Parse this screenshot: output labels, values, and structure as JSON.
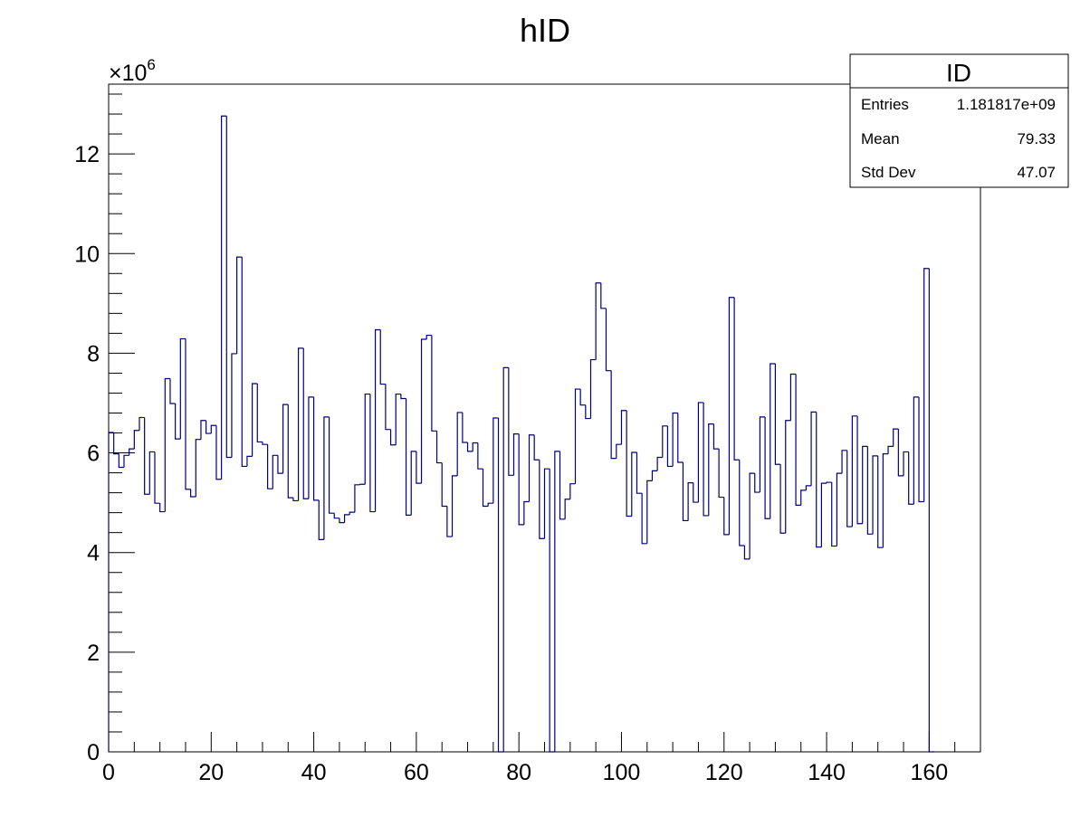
{
  "chart_data": {
    "type": "bar",
    "style": "step-histogram",
    "title": "hID",
    "xlabel": "",
    "ylabel": "",
    "xlim": [
      0,
      170
    ],
    "ylim": [
      0,
      13.4
    ],
    "y_multiplier": {
      "base": "×10",
      "exponent": "6"
    },
    "x_ticks": [
      0,
      20,
      40,
      60,
      80,
      100,
      120,
      140,
      160
    ],
    "y_ticks": [
      0,
      2,
      4,
      6,
      8,
      10,
      12
    ],
    "bin_width": 1,
    "grid": false,
    "line_color": "#00007f",
    "values": [
      6.41,
      5.98,
      5.71,
      5.95,
      6.08,
      6.45,
      6.71,
      5.17,
      6.02,
      4.99,
      4.82,
      7.49,
      6.99,
      6.28,
      8.29,
      5.27,
      5.12,
      6.27,
      6.65,
      6.39,
      6.55,
      5.47,
      12.76,
      5.91,
      7.99,
      9.93,
      5.73,
      5.93,
      7.39,
      6.22,
      6.17,
      5.28,
      5.95,
      5.59,
      6.97,
      5.1,
      5.04,
      8.1,
      5.08,
      7.12,
      5.05,
      4.26,
      6.72,
      4.79,
      4.69,
      4.6,
      4.76,
      4.81,
      5.36,
      5.37,
      7.18,
      4.82,
      8.47,
      7.38,
      6.47,
      6.16,
      7.18,
      7.09,
      4.75,
      6.03,
      5.39,
      8.28,
      8.36,
      6.44,
      5.8,
      4.93,
      4.32,
      5.54,
      6.81,
      6.21,
      6.03,
      6.2,
      5.68,
      4.93,
      4.99,
      6.7,
      0,
      7.71,
      5.55,
      6.38,
      4.56,
      5.02,
      6.36,
      5.86,
      4.28,
      5.68,
      0,
      6.03,
      4.67,
      5.07,
      5.38,
      7.28,
      6.96,
      6.69,
      7.87,
      9.41,
      8.9,
      7.65,
      5.89,
      6.17,
      6.85,
      4.73,
      6.01,
      5.19,
      4.18,
      5.44,
      5.64,
      5.91,
      6.54,
      5.73,
      6.8,
      5.81,
      4.64,
      5.4,
      5.01,
      7.01,
      4.74,
      6.58,
      6.08,
      5.11,
      4.36,
      9.12,
      5.86,
      4.14,
      3.87,
      5.59,
      5.21,
      6.72,
      4.68,
      7.79,
      5.77,
      4.39,
      6.65,
      7.58,
      4.95,
      5.25,
      5.34,
      6.82,
      4.11,
      5.39,
      5.41,
      4.13,
      5.59,
      6.05,
      4.52,
      6.74,
      4.58,
      6.13,
      4.37,
      5.94,
      4.1,
      5.98,
      6.13,
      6.48,
      5.54,
      6.02,
      4.97,
      7.12,
      5.02,
      9.7,
      0
    ],
    "stats_box": {
      "title": "ID",
      "rows": [
        {
          "label": "Entries",
          "value": "1.181817e+09"
        },
        {
          "label": "Mean",
          "value": "79.33"
        },
        {
          "label": "Std Dev",
          "value": "47.07"
        }
      ]
    }
  }
}
